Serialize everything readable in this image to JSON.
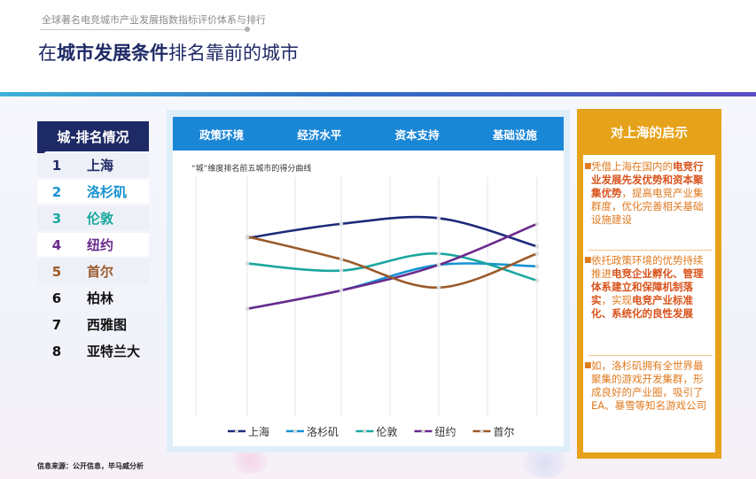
{
  "header": {
    "subtitle": "全球著名电竞城市产业发展指数指标评价体系与排行",
    "title_prefix": "在",
    "title_bold": "城市发展条件",
    "title_suffix": "排名靠前的城市"
  },
  "ranking": {
    "header": "城-排名情况",
    "items": [
      {
        "rank": "1",
        "city": "上海",
        "color": "#1e2a66",
        "bg": "#eef0f8"
      },
      {
        "rank": "2",
        "city": "洛杉矶",
        "color": "#1593d2",
        "bg": "#ffffff"
      },
      {
        "rank": "3",
        "city": "伦敦",
        "color": "#1aa79f",
        "bg": "#eef0f8"
      },
      {
        "rank": "4",
        "city": "纽约",
        "color": "#6a2a8c",
        "bg": "#ffffff"
      },
      {
        "rank": "5",
        "city": "首尔",
        "color": "#9a5a2a",
        "bg": "#eef0f8"
      },
      {
        "rank": "6",
        "city": "柏林",
        "color": "#111111",
        "bg": "transparent"
      },
      {
        "rank": "7",
        "city": "西雅图",
        "color": "#111111",
        "bg": "transparent"
      },
      {
        "rank": "8",
        "city": "亚特兰大",
        "color": "#111111",
        "bg": "transparent"
      }
    ]
  },
  "chart": {
    "tabs": [
      "政策环境",
      "经济水平",
      "资本支持",
      "基础设施"
    ],
    "caption": "“城”维度排名前五城市的得分曲线"
  },
  "chart_data": {
    "type": "line",
    "categories": [
      "政策环境",
      "经济水平",
      "资本支持",
      "基础设施"
    ],
    "y_axis": "not shown",
    "grid": "vertical lines",
    "legend": "bottom",
    "series": [
      {
        "name": "上海",
        "color": "#1e2a7a",
        "values": [
          0.82,
          0.92,
          0.96,
          0.76
        ]
      },
      {
        "name": "洛杉矶",
        "color": "#1593d2",
        "values": [
          0.32,
          0.45,
          0.63,
          0.62
        ]
      },
      {
        "name": "伦敦",
        "color": "#1aa79f",
        "values": [
          0.64,
          0.59,
          0.71,
          0.52
        ]
      },
      {
        "name": "纽约",
        "color": "#6a2a8c",
        "values": [
          0.32,
          0.45,
          0.63,
          0.92
        ]
      },
      {
        "name": "首尔",
        "color": "#9a5a2a",
        "values": [
          0.83,
          0.67,
          0.47,
          0.71
        ]
      }
    ]
  },
  "insights": {
    "header": "对上海的启示",
    "items": [
      {
        "pre": "凭借上海在国内的",
        "bold": "电竞行业发展先发优势和资本聚集优势",
        "post": "，提高电竞产业集群度，优化完善相关基础设施建设"
      },
      {
        "pre": "依托政策环境的优势持续推进",
        "bold": "电竞企业孵化、管理体系建立和保障机制落实",
        "mid": "，实现",
        "bold2": "电竞产业标准化、系统化的良性发展",
        "post": ""
      },
      {
        "pre": "如，洛杉矶拥有全世界最聚集的游戏开发集群，形成良好的产业圈，吸引了EA、暴雪等知名游戏公司",
        "bold": "",
        "post": ""
      }
    ]
  },
  "source": "信息来源：公开信息，毕马威分析"
}
